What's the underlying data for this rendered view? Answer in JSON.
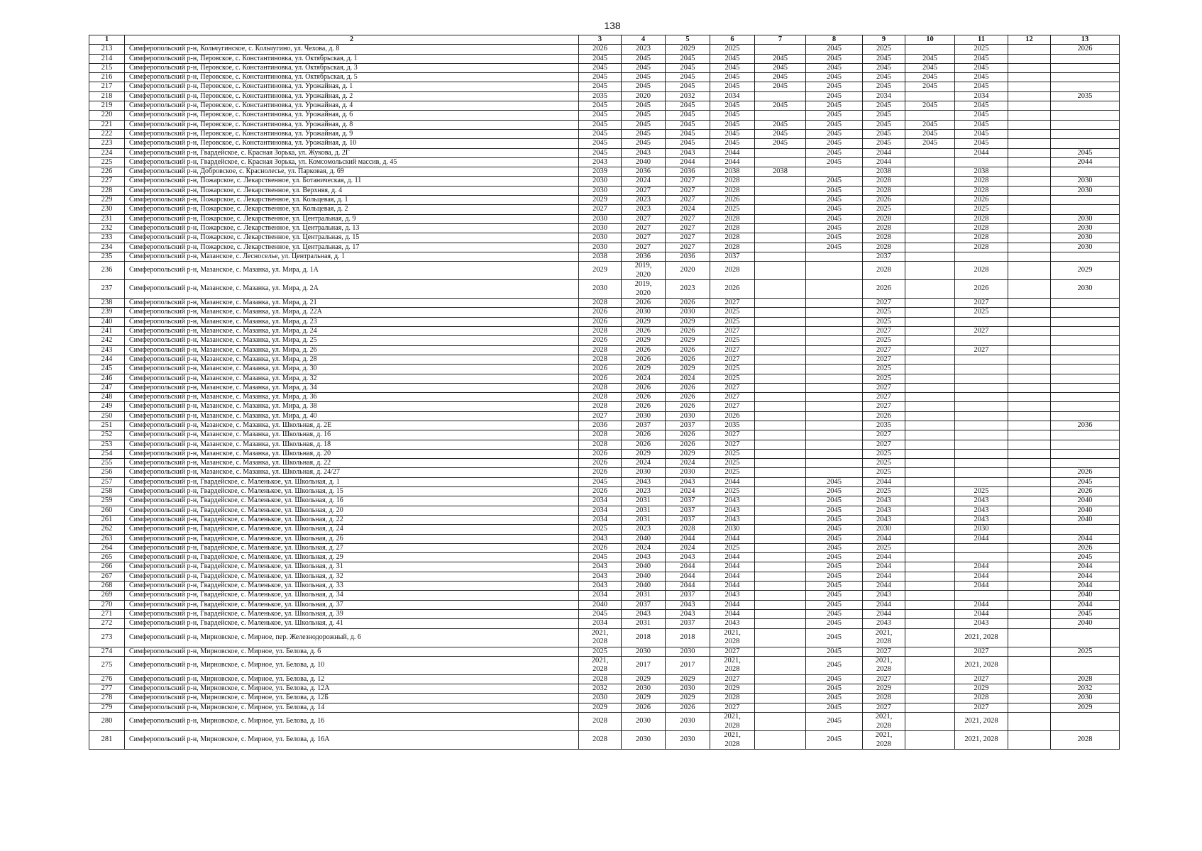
{
  "page_number": "138",
  "table": {
    "headers": [
      "1",
      "2",
      "3",
      "4",
      "5",
      "6",
      "7",
      "8",
      "9",
      "10",
      "11",
      "12",
      "13"
    ],
    "rows": [
      [
        "213",
        "Симферопольский р-н, Кольчугинское, с. Кольчугино, ул. Чехова, д. 8",
        "2026",
        "2023",
        "2029",
        "2025",
        "",
        "2045",
        "2025",
        "",
        "2025",
        "",
        "2026"
      ],
      [
        "214",
        "Симферопольский р-н, Перовское, с. Константиновка, ул. Октябрьская, д. 1",
        "2045",
        "2045",
        "2045",
        "2045",
        "2045",
        "2045",
        "2045",
        "2045",
        "2045",
        "",
        ""
      ],
      [
        "215",
        "Симферопольский р-н, Перовское, с. Константиновка, ул. Октябрьская, д. 3",
        "2045",
        "2045",
        "2045",
        "2045",
        "2045",
        "2045",
        "2045",
        "2045",
        "2045",
        "",
        ""
      ],
      [
        "216",
        "Симферопольский р-н, Перовское, с. Константиновка, ул. Октябрьская, д. 5",
        "2045",
        "2045",
        "2045",
        "2045",
        "2045",
        "2045",
        "2045",
        "2045",
        "2045",
        "",
        ""
      ],
      [
        "217",
        "Симферопольский р-н, Перовское, с. Константиновка, ул. Урожайная, д. 1",
        "2045",
        "2045",
        "2045",
        "2045",
        "2045",
        "2045",
        "2045",
        "2045",
        "2045",
        "",
        ""
      ],
      [
        "218",
        "Симферопольский р-н, Перовское, с. Константиновка, ул. Урожайная, д. 2",
        "2035",
        "2020",
        "2032",
        "2034",
        "",
        "2045",
        "2034",
        "",
        "2034",
        "",
        "2035"
      ],
      [
        "219",
        "Симферопольский р-н, Перовское, с. Константиновка, ул. Урожайная, д. 4",
        "2045",
        "2045",
        "2045",
        "2045",
        "2045",
        "2045",
        "2045",
        "2045",
        "2045",
        "",
        ""
      ],
      [
        "220",
        "Симферопольский р-н, Перовское, с. Константиновка, ул. Урожайная, д. 6",
        "2045",
        "2045",
        "2045",
        "2045",
        "",
        "2045",
        "2045",
        "",
        "2045",
        "",
        ""
      ],
      [
        "221",
        "Симферопольский р-н, Перовское, с. Константиновка, ул. Урожайная, д. 8",
        "2045",
        "2045",
        "2045",
        "2045",
        "2045",
        "2045",
        "2045",
        "2045",
        "2045",
        "",
        ""
      ],
      [
        "222",
        "Симферопольский р-н, Перовское, с. Константиновка, ул. Урожайная, д. 9",
        "2045",
        "2045",
        "2045",
        "2045",
        "2045",
        "2045",
        "2045",
        "2045",
        "2045",
        "",
        ""
      ],
      [
        "223",
        "Симферопольский р-н, Перовское, с. Константиновка, ул. Урожайная, д. 10",
        "2045",
        "2045",
        "2045",
        "2045",
        "2045",
        "2045",
        "2045",
        "2045",
        "2045",
        "",
        ""
      ],
      [
        "224",
        "Симферопольский р-н, Гвардейское, с. Красная Зорька, ул. Жукова, д. 2Г",
        "2045",
        "2043",
        "2043",
        "2044",
        "",
        "2045",
        "2044",
        "",
        "2044",
        "",
        "2045"
      ],
      [
        "225",
        "Симферопольский р-н, Гвардейское, с. Красная Зорька, ул. Комсомольский массив, д. 45",
        "2043",
        "2040",
        "2044",
        "2044",
        "",
        "2045",
        "2044",
        "",
        "",
        "",
        "2044"
      ],
      [
        "226",
        "Симферопольский р-н, Добровское, с. Краснолесье, ул. Парковая, д. 69",
        "2039",
        "2036",
        "2036",
        "2038",
        "2038",
        "",
        "2038",
        "",
        "2038",
        "",
        ""
      ],
      [
        "227",
        "Симферопольский р-н, Пожарское, с. Лекарственное, ул. Ботаническая, д. 11",
        "2030",
        "2024",
        "2027",
        "2028",
        "",
        "2045",
        "2028",
        "",
        "2028",
        "",
        "2030"
      ],
      [
        "228",
        "Симферопольский р-н, Пожарское, с. Лекарственное, ул. Верхняя, д. 4",
        "2030",
        "2027",
        "2027",
        "2028",
        "",
        "2045",
        "2028",
        "",
        "2028",
        "",
        "2030"
      ],
      [
        "229",
        "Симферопольский р-н, Пожарское, с. Лекарственное, ул. Кольцевая, д. 1",
        "2029",
        "2023",
        "2027",
        "2026",
        "",
        "2045",
        "2026",
        "",
        "2026",
        "",
        ""
      ],
      [
        "230",
        "Симферопольский р-н, Пожарское, с. Лекарственное, ул. Кольцевая, д. 2",
        "2027",
        "2023",
        "2024",
        "2025",
        "",
        "2045",
        "2025",
        "",
        "2025",
        "",
        ""
      ],
      [
        "231",
        "Симферопольский р-н, Пожарское, с. Лекарственное, ул. Центральная, д. 9",
        "2030",
        "2027",
        "2027",
        "2028",
        "",
        "2045",
        "2028",
        "",
        "2028",
        "",
        "2030"
      ],
      [
        "232",
        "Симферопольский р-н, Пожарское, с. Лекарственное, ул. Центральная, д. 13",
        "2030",
        "2027",
        "2027",
        "2028",
        "",
        "2045",
        "2028",
        "",
        "2028",
        "",
        "2030"
      ],
      [
        "233",
        "Симферопольский р-н, Пожарское, с. Лекарственное, ул. Центральная, д. 15",
        "2030",
        "2027",
        "2027",
        "2028",
        "",
        "2045",
        "2028",
        "",
        "2028",
        "",
        "2030"
      ],
      [
        "234",
        "Симферопольский р-н, Пожарское, с. Лекарственное, ул. Центральная, д. 17",
        "2030",
        "2027",
        "2027",
        "2028",
        "",
        "2045",
        "2028",
        "",
        "2028",
        "",
        "2030"
      ],
      [
        "235",
        "Симферопольский р-н, Мазанское, с. Лесноселье, ул. Центральная, д. 1",
        "2038",
        "2036",
        "2036",
        "2037",
        "",
        "",
        "2037",
        "",
        "",
        "",
        ""
      ],
      [
        "236",
        "Симферопольский р-н, Мазанское, с. Мазанка, ул. Мира, д. 1А",
        "2029",
        "2019,\n2020",
        "2020",
        "2028",
        "",
        "",
        "2028",
        "",
        "2028",
        "",
        "2029"
      ],
      [
        "237",
        "Симферопольский р-н, Мазанское, с. Мазанка, ул. Мира, д. 2А",
        "2030",
        "2019,\n2020",
        "2023",
        "2026",
        "",
        "",
        "2026",
        "",
        "2026",
        "",
        "2030"
      ],
      [
        "238",
        "Симферопольский р-н, Мазанское, с. Мазанка, ул. Мира, д. 21",
        "2028",
        "2026",
        "2026",
        "2027",
        "",
        "",
        "2027",
        "",
        "2027",
        "",
        ""
      ],
      [
        "239",
        "Симферопольский р-н, Мазанское, с. Мазанка, ул. Мира, д. 22А",
        "2026",
        "2030",
        "2030",
        "2025",
        "",
        "",
        "2025",
        "",
        "2025",
        "",
        ""
      ],
      [
        "240",
        "Симферопольский р-н, Мазанское, с. Мазанка, ул. Мира, д. 23",
        "2026",
        "2029",
        "2029",
        "2025",
        "",
        "",
        "2025",
        "",
        "",
        "",
        ""
      ],
      [
        "241",
        "Симферопольский р-н, Мазанское, с. Мазанка, ул. Мира, д. 24",
        "2028",
        "2026",
        "2026",
        "2027",
        "",
        "",
        "2027",
        "",
        "2027",
        "",
        ""
      ],
      [
        "242",
        "Симферопольский р-н, Мазанское, с. Мазанка, ул. Мира, д. 25",
        "2026",
        "2029",
        "2029",
        "2025",
        "",
        "",
        "2025",
        "",
        "",
        "",
        ""
      ],
      [
        "243",
        "Симферопольский р-н, Мазанское, с. Мазанка, ул. Мира, д. 26",
        "2028",
        "2026",
        "2026",
        "2027",
        "",
        "",
        "2027",
        "",
        "2027",
        "",
        ""
      ],
      [
        "244",
        "Симферопольский р-н, Мазанское, с. Мазанка, ул. Мира, д. 28",
        "2028",
        "2026",
        "2026",
        "2027",
        "",
        "",
        "2027",
        "",
        "",
        "",
        ""
      ],
      [
        "245",
        "Симферопольский р-н, Мазанское, с. Мазанка, ул. Мира, д. 30",
        "2026",
        "2029",
        "2029",
        "2025",
        "",
        "",
        "2025",
        "",
        "",
        "",
        ""
      ],
      [
        "246",
        "Симферопольский р-н, Мазанское, с. Мазанка, ул. Мира, д. 32",
        "2026",
        "2024",
        "2024",
        "2025",
        "",
        "",
        "2025",
        "",
        "",
        "",
        ""
      ],
      [
        "247",
        "Симферопольский р-н, Мазанское, с. Мазанка, ул. Мира, д. 34",
        "2028",
        "2026",
        "2026",
        "2027",
        "",
        "",
        "2027",
        "",
        "",
        "",
        ""
      ],
      [
        "248",
        "Симферопольский р-н, Мазанское, с. Мазанка, ул. Мира, д. 36",
        "2028",
        "2026",
        "2026",
        "2027",
        "",
        "",
        "2027",
        "",
        "",
        "",
        ""
      ],
      [
        "249",
        "Симферопольский р-н, Мазанское, с. Мазанка, ул. Мира, д. 38",
        "2028",
        "2026",
        "2026",
        "2027",
        "",
        "",
        "2027",
        "",
        "",
        "",
        ""
      ],
      [
        "250",
        "Симферопольский р-н, Мазанское, с. Мазанка, ул. Мира, д. 40",
        "2027",
        "2030",
        "2030",
        "2026",
        "",
        "",
        "2026",
        "",
        "",
        "",
        ""
      ],
      [
        "251",
        "Симферопольский р-н, Мазанское, с. Мазанка, ул. Школьная, д. 2Е",
        "2036",
        "2037",
        "2037",
        "2035",
        "",
        "",
        "2035",
        "",
        "",
        "",
        "2036"
      ],
      [
        "252",
        "Симферопольский р-н, Мазанское, с. Мазанка, ул. Школьная, д. 16",
        "2028",
        "2026",
        "2026",
        "2027",
        "",
        "",
        "2027",
        "",
        "",
        "",
        ""
      ],
      [
        "253",
        "Симферопольский р-н, Мазанское, с. Мазанка, ул. Школьная, д. 18",
        "2028",
        "2026",
        "2026",
        "2027",
        "",
        "",
        "2027",
        "",
        "",
        "",
        ""
      ],
      [
        "254",
        "Симферопольский р-н, Мазанское, с. Мазанка, ул. Школьная, д. 20",
        "2026",
        "2029",
        "2029",
        "2025",
        "",
        "",
        "2025",
        "",
        "",
        "",
        ""
      ],
      [
        "255",
        "Симферопольский р-н, Мазанское, с. Мазанка, ул. Школьная, д. 22",
        "2026",
        "2024",
        "2024",
        "2025",
        "",
        "",
        "2025",
        "",
        "",
        "",
        ""
      ],
      [
        "256",
        "Симферопольский р-н, Мазанское, с. Мазанка, ул. Школьная, д. 24/27",
        "2026",
        "2030",
        "2030",
        "2025",
        "",
        "",
        "2025",
        "",
        "",
        "",
        "2026"
      ],
      [
        "257",
        "Симферопольский р-н, Гвардейское, с. Маленькое, ул. Школьная, д. 1",
        "2045",
        "2043",
        "2043",
        "2044",
        "",
        "2045",
        "2044",
        "",
        "",
        "",
        "2045"
      ],
      [
        "258",
        "Симферопольский р-н, Гвардейское, с. Маленькое, ул. Школьная, д. 15",
        "2026",
        "2023",
        "2024",
        "2025",
        "",
        "2045",
        "2025",
        "",
        "2025",
        "",
        "2026"
      ],
      [
        "259",
        "Симферопольский р-н, Гвардейское, с. Маленькое, ул. Школьная, д. 16",
        "2034",
        "2031",
        "2037",
        "2043",
        "",
        "2045",
        "2043",
        "",
        "2043",
        "",
        "2040"
      ],
      [
        "260",
        "Симферопольский р-н, Гвардейское, с. Маленькое, ул. Школьная, д. 20",
        "2034",
        "2031",
        "2037",
        "2043",
        "",
        "2045",
        "2043",
        "",
        "2043",
        "",
        "2040"
      ],
      [
        "261",
        "Симферопольский р-н, Гвардейское, с. Маленькое, ул. Школьная, д. 22",
        "2034",
        "2031",
        "2037",
        "2043",
        "",
        "2045",
        "2043",
        "",
        "2043",
        "",
        "2040"
      ],
      [
        "262",
        "Симферопольский р-н, Гвардейское, с. Маленькое, ул. Школьная, д. 24",
        "2025",
        "2023",
        "2028",
        "2030",
        "",
        "2045",
        "2030",
        "",
        "2030",
        "",
        ""
      ],
      [
        "263",
        "Симферопольский р-н, Гвардейское, с. Маленькое, ул. Школьная, д. 26",
        "2043",
        "2040",
        "2044",
        "2044",
        "",
        "2045",
        "2044",
        "",
        "2044",
        "",
        "2044"
      ],
      [
        "264",
        "Симферопольский р-н, Гвардейское, с. Маленькое, ул. Школьная, д. 27",
        "2026",
        "2024",
        "2024",
        "2025",
        "",
        "2045",
        "2025",
        "",
        "",
        "",
        "2026"
      ],
      [
        "265",
        "Симферопольский р-н, Гвардейское, с. Маленькое, ул. Школьная, д. 29",
        "2045",
        "2043",
        "2043",
        "2044",
        "",
        "2045",
        "2044",
        "",
        "",
        "",
        "2045"
      ],
      [
        "266",
        "Симферопольский р-н, Гвардейское, с. Маленькое, ул. Школьная, д. 31",
        "2043",
        "2040",
        "2044",
        "2044",
        "",
        "2045",
        "2044",
        "",
        "2044",
        "",
        "2044"
      ],
      [
        "267",
        "Симферопольский р-н, Гвардейское, с. Маленькое, ул. Школьная, д. 32",
        "2043",
        "2040",
        "2044",
        "2044",
        "",
        "2045",
        "2044",
        "",
        "2044",
        "",
        "2044"
      ],
      [
        "268",
        "Симферопольский р-н, Гвардейское, с. Маленькое, ул. Школьная, д. 33",
        "2043",
        "2040",
        "2044",
        "2044",
        "",
        "2045",
        "2044",
        "",
        "2044",
        "",
        "2044"
      ],
      [
        "269",
        "Симферопольский р-н, Гвардейское, с. Маленькое, ул. Школьная, д. 34",
        "2034",
        "2031",
        "2037",
        "2043",
        "",
        "2045",
        "2043",
        "",
        "",
        "",
        "2040"
      ],
      [
        "270",
        "Симферопольский р-н, Гвардейское, с. Маленькое, ул. Школьная, д. 37",
        "2040",
        "2037",
        "2043",
        "2044",
        "",
        "2045",
        "2044",
        "",
        "2044",
        "",
        "2044"
      ],
      [
        "271",
        "Симферопольский р-н, Гвардейское, с. Маленькое, ул. Школьная, д. 39",
        "2045",
        "2043",
        "2043",
        "2044",
        "",
        "2045",
        "2044",
        "",
        "2044",
        "",
        "2045"
      ],
      [
        "272",
        "Симферопольский р-н, Гвардейское, с. Маленькое, ул. Школьная, д. 41",
        "2034",
        "2031",
        "2037",
        "2043",
        "",
        "2045",
        "2043",
        "",
        "2043",
        "",
        "2040"
      ],
      [
        "273",
        "Симферопольский р-н, Мирновское, с. Мирное, пер. Железнодорожный, д. 6",
        "2021,\n2028",
        "2018",
        "2018",
        "2021,\n2028",
        "",
        "2045",
        "2021,\n2028",
        "",
        "2021, 2028",
        "",
        ""
      ],
      [
        "274",
        "Симферопольский р-н, Мирновское, с. Мирное, ул. Белова, д. 6",
        "2025",
        "2030",
        "2030",
        "2027",
        "",
        "2045",
        "2027",
        "",
        "2027",
        "",
        "2025"
      ],
      [
        "275",
        "Симферопольский р-н, Мирновское, с. Мирное, ул. Белова, д. 10",
        "2021,\n2028",
        "2017",
        "2017",
        "2021,\n2028",
        "",
        "2045",
        "2021,\n2028",
        "",
        "2021, 2028",
        "",
        ""
      ],
      [
        "276",
        "Симферопольский р-н, Мирновское, с. Мирное, ул. Белова, д. 12",
        "2028",
        "2029",
        "2029",
        "2027",
        "",
        "2045",
        "2027",
        "",
        "2027",
        "",
        "2028"
      ],
      [
        "277",
        "Симферопольский р-н, Мирновское, с. Мирное, ул. Белова, д. 12А",
        "2032",
        "2030",
        "2030",
        "2029",
        "",
        "2045",
        "2029",
        "",
        "2029",
        "",
        "2032"
      ],
      [
        "278",
        "Симферопольский р-н, Мирновское, с. Мирное, ул. Белова, д. 12Б",
        "2030",
        "2029",
        "2029",
        "2028",
        "",
        "2045",
        "2028",
        "",
        "2028",
        "",
        "2030"
      ],
      [
        "279",
        "Симферопольский р-н, Мирновское, с. Мирное, ул. Белова, д. 14",
        "2029",
        "2026",
        "2026",
        "2027",
        "",
        "2045",
        "2027",
        "",
        "2027",
        "",
        "2029"
      ],
      [
        "280",
        "Симферопольский р-н, Мирновское, с. Мирное, ул. Белова, д. 16",
        "2028",
        "2030",
        "2030",
        "2021,\n2028",
        "",
        "2045",
        "2021,\n2028",
        "",
        "2021, 2028",
        "",
        ""
      ],
      [
        "281",
        "Симферопольский р-н, Мирновское, с. Мирное, ул. Белова, д. 16А",
        "2028",
        "2030",
        "2030",
        "2021,\n2028",
        "",
        "2045",
        "2021,\n2028",
        "",
        "2021, 2028",
        "",
        "2028"
      ]
    ]
  }
}
